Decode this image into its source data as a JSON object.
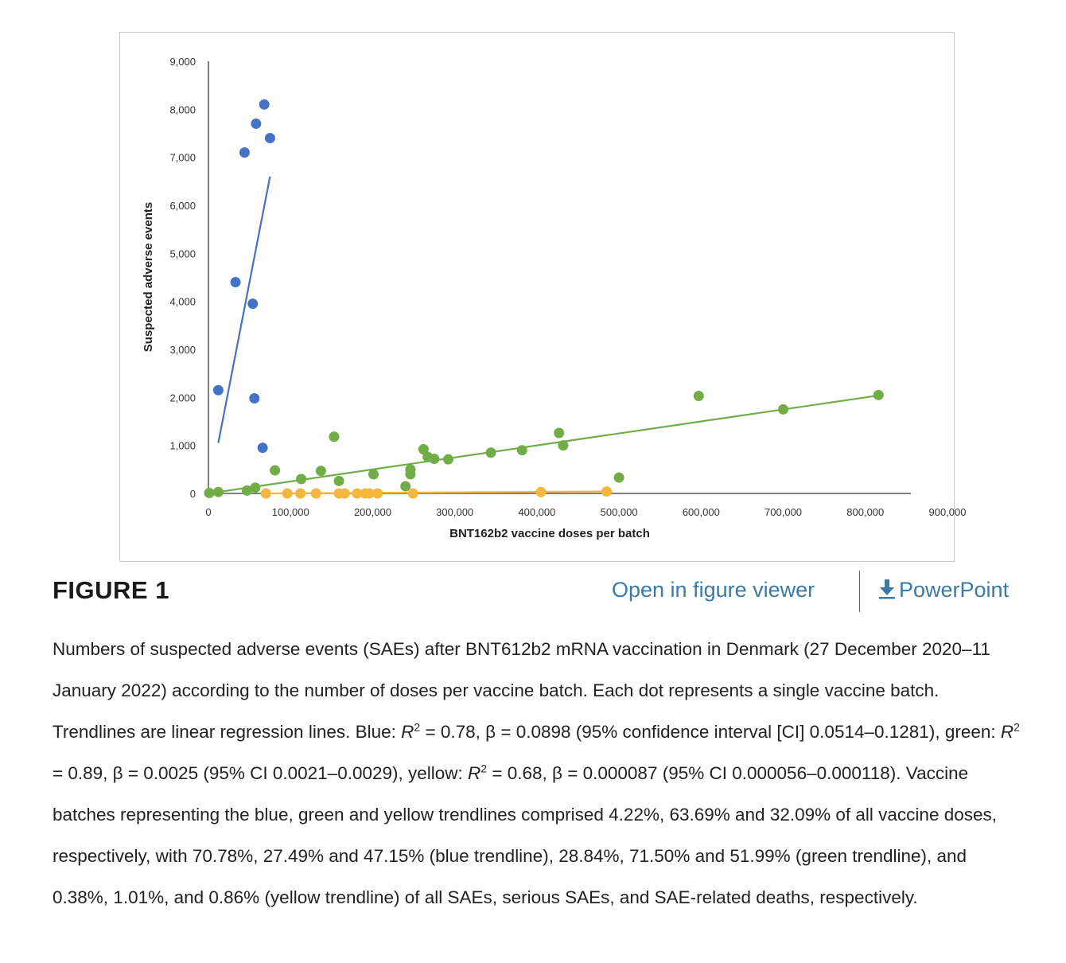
{
  "chart_data": {
    "type": "scatter",
    "xlabel": "BNT162b2 vaccine doses per batch",
    "ylabel": "Suspected adverse events",
    "xlim": [
      0,
      900000
    ],
    "ylim": [
      0,
      9000
    ],
    "x_ticks": [
      0,
      100000,
      200000,
      300000,
      400000,
      500000,
      600000,
      700000,
      800000,
      900000
    ],
    "x_tick_labels": [
      "0",
      "100,000",
      "200,000",
      "300,000",
      "400,000",
      "500,000",
      "600,000",
      "700,000",
      "800,000",
      "900,000"
    ],
    "y_ticks": [
      0,
      1000,
      2000,
      3000,
      4000,
      5000,
      6000,
      7000,
      8000,
      9000
    ],
    "y_tick_labels": [
      "0",
      "1,000",
      "2,000",
      "3,000",
      "4,000",
      "5,000",
      "6,000",
      "7,000",
      "8,000",
      "9,000"
    ],
    "grid": false,
    "legend": "none",
    "series": [
      {
        "color": "#4472c4",
        "points": [
          [
            12000,
            2150
          ],
          [
            33000,
            4400
          ],
          [
            44000,
            7100
          ],
          [
            54000,
            3950
          ],
          [
            56000,
            1980
          ],
          [
            58000,
            7700
          ],
          [
            66000,
            950
          ],
          [
            68000,
            8100
          ],
          [
            75000,
            7400
          ]
        ],
        "trendline": [
          [
            12000,
            1050
          ],
          [
            75000,
            6600
          ]
        ]
      },
      {
        "color": "#70ad47",
        "points": [
          [
            1000,
            10
          ],
          [
            12000,
            30
          ],
          [
            47000,
            60
          ],
          [
            57000,
            120
          ],
          [
            81000,
            480
          ],
          [
            113000,
            300
          ],
          [
            137000,
            470
          ],
          [
            153000,
            1180
          ],
          [
            159000,
            260
          ],
          [
            201000,
            400
          ],
          [
            240000,
            150
          ],
          [
            246000,
            500
          ],
          [
            246000,
            400
          ],
          [
            262000,
            920
          ],
          [
            267000,
            760
          ],
          [
            275000,
            720
          ],
          [
            292000,
            710
          ],
          [
            344000,
            850
          ],
          [
            382000,
            900
          ],
          [
            427000,
            1260
          ],
          [
            432000,
            1000
          ],
          [
            500000,
            330
          ],
          [
            597000,
            2030
          ],
          [
            700000,
            1750
          ],
          [
            816000,
            2050
          ]
        ],
        "trendline": [
          [
            0,
            0
          ],
          [
            816000,
            2040
          ]
        ]
      },
      {
        "color": "#f4b73e",
        "points": [
          [
            70000,
            0
          ],
          [
            96000,
            0
          ],
          [
            112000,
            0
          ],
          [
            131000,
            0
          ],
          [
            159000,
            0
          ],
          [
            166000,
            0
          ],
          [
            181000,
            0
          ],
          [
            191000,
            0
          ],
          [
            196000,
            0
          ],
          [
            206000,
            0
          ],
          [
            249000,
            0
          ],
          [
            405000,
            30
          ],
          [
            485000,
            40
          ]
        ],
        "trendline": [
          [
            66000,
            0
          ],
          [
            487000,
            42
          ]
        ]
      }
    ]
  },
  "figure": {
    "title": "FIGURE 1",
    "viewer_link": "Open in figure viewer",
    "ppt_link": "PowerPoint",
    "download_icon": "download-icon",
    "link_color": "#3c7aa6"
  },
  "caption": {
    "p1": "Numbers of suspected adverse events (SAEs) after BNT612b2 mRNA vaccination in Denmark (27 December 2020–11 January 2022) according to the number of doses per vaccine batch. Each dot represents a single vaccine batch. Trendlines are linear regression lines. Blue: ",
    "r": "R",
    "sq": "2",
    "p2": " = 0.78, β = 0.0898 (95% confidence interval [CI] 0.0514–0.1281), green: ",
    "p3": " = 0.89, β = 0.0025 (95% CI 0.0021–0.0029), yellow: ",
    "p4": " = 0.68, β = 0.000087 (95% CI 0.000056–0.000118). Vaccine batches representing the blue, green and yellow trendlines comprised 4.22%, 63.69% and 32.09% of all vaccine doses, respectively, with 70.78%, 27.49% and 47.15% (blue trendline), 28.84%, 71.50% and 51.99% (green trendline), and 0.38%, 1.01%, and 0.86% (yellow trendline) of all SAEs, serious SAEs, and SAE-related deaths, respectively."
  }
}
